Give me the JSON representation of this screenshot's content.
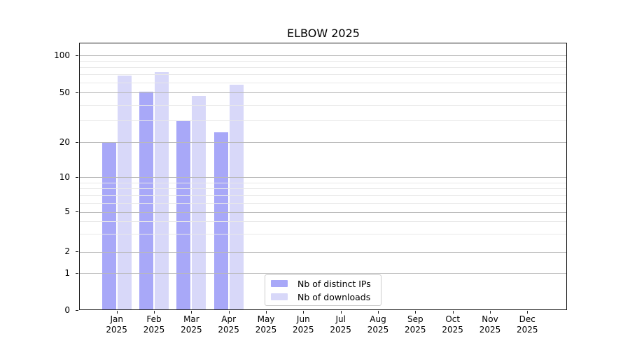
{
  "title": "ELBOW 2025",
  "legend": {
    "items": [
      {
        "label": "Nb of distinct IPs",
        "color": "#a8a8f8"
      },
      {
        "label": "Nb of downloads",
        "color": "#d8d8f9"
      }
    ]
  },
  "axes": {
    "y_tick_labels": [
      "100",
      "50",
      "20",
      "10",
      "5",
      "2",
      "1",
      "0"
    ],
    "x_tick_labels_line1": [
      "Jan",
      "Feb",
      "Mar",
      "Apr",
      "May",
      "Jun",
      "Jul",
      "Aug",
      "Sep",
      "Oct",
      "Nov",
      "Dec"
    ],
    "x_tick_labels_line2": [
      "2025",
      "2025",
      "2025",
      "2025",
      "2025",
      "2025",
      "2025",
      "2025",
      "2025",
      "2025",
      "2025",
      "2025"
    ]
  },
  "chart_data": {
    "type": "bar",
    "title": "ELBOW 2025",
    "categories": [
      "Jan 2025",
      "Feb 2025",
      "Mar 2025",
      "Apr 2025",
      "May 2025",
      "Jun 2025",
      "Jul 2025",
      "Aug 2025",
      "Sep 2025",
      "Oct 2025",
      "Nov 2025",
      "Dec 2025"
    ],
    "series": [
      {
        "name": "Nb of distinct IPs",
        "color": "#a8a8f8",
        "values": [
          20,
          51,
          30,
          24,
          null,
          null,
          null,
          null,
          null,
          null,
          null,
          null
        ]
      },
      {
        "name": "Nb of downloads",
        "color": "#d8d8f9",
        "values": [
          69,
          73,
          47,
          58,
          null,
          null,
          null,
          null,
          null,
          null,
          null,
          null
        ]
      }
    ],
    "xlabel": "",
    "ylabel": "",
    "yscale": "quasi-log (log above 1, linear segment 0-1)",
    "y_major_ticks": [
      0,
      1,
      2,
      5,
      10,
      20,
      50,
      100
    ],
    "y_minor_ticks": [
      3,
      4,
      6,
      7,
      8,
      9,
      30,
      40,
      60,
      70,
      80,
      90
    ],
    "ylim": [
      0,
      126
    ],
    "grid": "horizontal major and minor, drawn above bars",
    "legend_position": "lower center inside plot",
    "colors": {
      "major_grid": "#b9b9b9",
      "minor_grid": "#e8e8e8",
      "spine": "#1a1a1a",
      "background": "#ffffff"
    }
  }
}
